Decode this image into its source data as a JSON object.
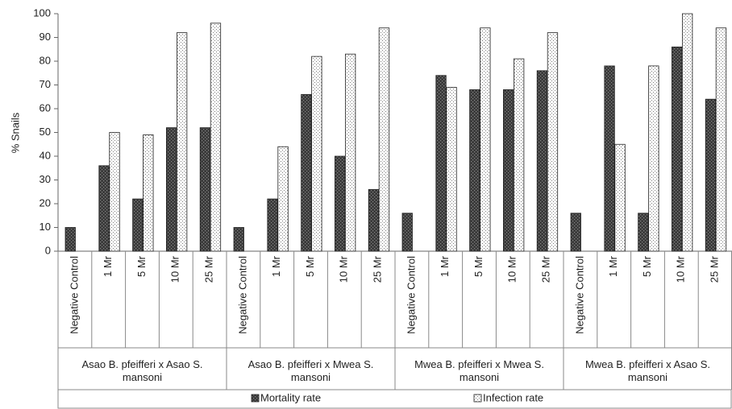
{
  "chart_data": {
    "type": "bar",
    "y_label": "% Snails",
    "groups": [
      "Asao B. pfeifferi x Asao S. mansoni",
      "Asao B. pfeifferi x Mwea S. mansoni",
      "Mwea B. pfeifferi x Mwea S. mansoni",
      "Mwea B. pfeifferi x Asao S. mansoni"
    ],
    "categories": [
      "Negative Control",
      "1 Mr",
      "5 Mr",
      "10 Mr",
      "25 Mr",
      "Negative Control",
      "1 Mr",
      "5 Mr",
      "10 Mr",
      "25 Mr",
      "Negative Control",
      "1 Mr",
      "5 Mr",
      "10 Mr",
      "25 Mr",
      "Negative Control",
      "1 Mr",
      "5 Mr",
      "10 Mr",
      "25 Mr"
    ],
    "series": [
      {
        "name": "Mortality rate",
        "color": "#3a3a3a",
        "values": [
          10,
          36,
          22,
          52,
          52,
          10,
          22,
          66,
          40,
          26,
          16,
          74,
          68,
          68,
          76,
          16,
          78,
          16,
          86,
          64
        ]
      },
      {
        "name": "Infection rate",
        "color": "#ffffff",
        "values": [
          null,
          50,
          49,
          92,
          96,
          null,
          44,
          82,
          83,
          94,
          null,
          69,
          94,
          81,
          92,
          null,
          45,
          78,
          100,
          94
        ]
      }
    ],
    "ylim": [
      0,
      100
    ],
    "yticks": [
      0,
      10,
      20,
      30,
      40,
      50,
      60,
      70,
      80,
      90,
      100
    ]
  }
}
